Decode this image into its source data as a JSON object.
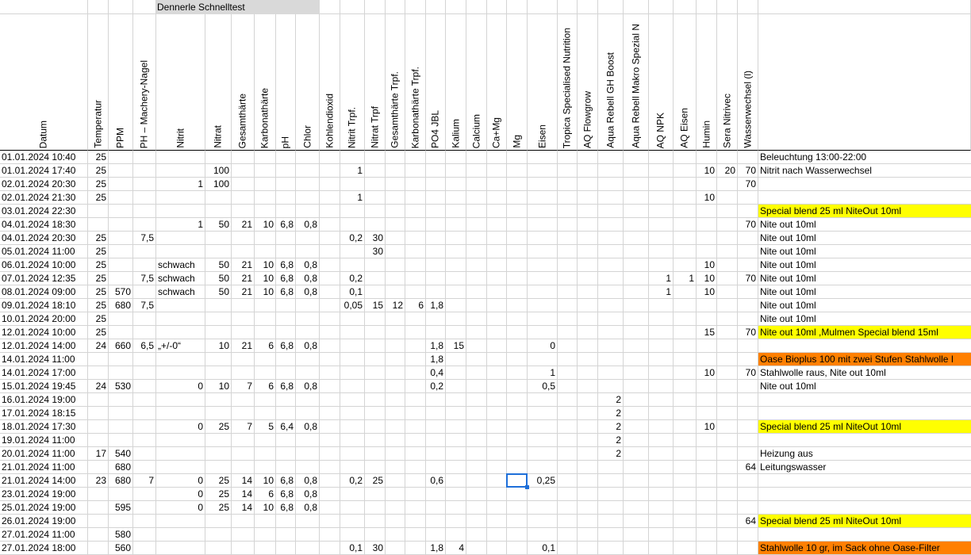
{
  "sheet": {
    "group_title": "Dennerle Schnelltest",
    "columns": [
      "Datum",
      "Temperatur",
      "PPM",
      "PH – Machery-Nagel",
      "Nitrit",
      "Nitrat",
      "Gesamthärte",
      "Karbonathärte",
      "pH",
      "Chlor",
      "Kohlendioxid",
      "Nitrit Trpf.",
      "Nitrat Trpf",
      "Gesamthärte Trpf.",
      "Karbonathärte Trpf.",
      "PO4 JBL",
      "Kalium",
      "Calcium",
      "Ca+Mg",
      "Mg",
      "Eisen",
      "Tropica Specialised Nutrition",
      "AQ Flowgrow",
      "Aqua Rebell GH Boost",
      "Aqua Rebell Makro Spezial N",
      "AQ NPK",
      "AQ Eisen",
      "Humin",
      "Sera Nitrivec",
      "Wasserwechsel (l)",
      null
    ],
    "rows": [
      {
        "cells": {
          "0": "01.01.2024 10:40",
          "1": "25",
          "30": "Beleuchtung 13:00-22:00"
        }
      },
      {
        "cells": {
          "0": "01.01.2024 17:40",
          "1": "25",
          "5": "100",
          "11": "1",
          "27": "10",
          "28": "20",
          "29": "70",
          "30": "Nitrit nach Wasserwechsel"
        }
      },
      {
        "cells": {
          "0": "02.01.2024 20:30",
          "1": "25",
          "4": "1",
          "5": "100",
          "29": "70"
        }
      },
      {
        "cells": {
          "0": "02.01.2024 21:30",
          "1": "25",
          "11": "1",
          "27": "10"
        }
      },
      {
        "cells": {
          "0": "03.01.2024 22:30",
          "30": "Special blend 25 ml NiteOut 10ml"
        },
        "fill": "#ffff00"
      },
      {
        "cells": {
          "0": "04.01.2024 18:30",
          "4": "1",
          "5": "50",
          "6": "21",
          "7": "10",
          "8": "6,8",
          "9": "0,8",
          "29": "70",
          "30": "Nite out 10ml"
        }
      },
      {
        "cells": {
          "0": "04.01.2024 20:30",
          "1": "25",
          "3": "7,5",
          "11": "0,2",
          "12": "30",
          "30": "Nite out 10ml"
        }
      },
      {
        "cells": {
          "0": "05.01.2024 11:00",
          "1": "25",
          "12": "30",
          "30": "Nite out 10ml"
        }
      },
      {
        "cells": {
          "0": "06.01.2024 10:00",
          "1": "25",
          "4": "schwach",
          "5": "50",
          "6": "21",
          "7": "10",
          "8": "6,8",
          "9": "0,8",
          "27": "10",
          "30": "Nite out 10ml"
        }
      },
      {
        "cells": {
          "0": "07.01.2024 12:35",
          "1": "25",
          "3": "7,5",
          "4": "schwach",
          "5": "50",
          "6": "21",
          "7": "10",
          "8": "6,8",
          "9": "0,8",
          "11": "0,2",
          "25": "1",
          "26": "1",
          "27": "10",
          "29": "70",
          "30": "Nite out 10ml"
        }
      },
      {
        "cells": {
          "0": "08.01.2024 09:00",
          "1": "25",
          "2": "570",
          "4": "schwach",
          "5": "50",
          "6": "21",
          "7": "10",
          "8": "6,8",
          "9": "0,8",
          "11": "0,1",
          "25": "1",
          "27": "10",
          "30": "Nite out 10ml"
        }
      },
      {
        "cells": {
          "0": "09.01.2024 18:10",
          "1": "25",
          "2": "680",
          "3": "7,5",
          "11": "0,05",
          "12": "15",
          "13": "12",
          "14": "6",
          "15": "1,8",
          "30": "Nite out 10ml"
        }
      },
      {
        "cells": {
          "0": "10.01.2024 20:00",
          "1": "25",
          "30": "Nite out 10ml"
        }
      },
      {
        "cells": {
          "0": "12.01.2024 10:00",
          "1": "25",
          "27": "15",
          "29": "70",
          "30": "Nite out 10ml ,Mulmen Special blend 15ml"
        },
        "fill": "#ffff00"
      },
      {
        "cells": {
          "0": "12.01.2024 14:00",
          "1": "24",
          "2": "660",
          "3": "6,5",
          "4": "„+/-0“",
          "5": "10",
          "6": "21",
          "7": "6",
          "8": "6,8",
          "9": "0,8",
          "15": "1,8",
          "16": "15",
          "20": "0"
        }
      },
      {
        "cells": {
          "0": "14.01.2024 11:00",
          "15": "1,8",
          "30": "Oase Bioplus 100 mit zwei Stufen Stahlwolle I"
        },
        "fill": "#ff8000"
      },
      {
        "cells": {
          "0": "14.01.2024 17:00",
          "15": "0,4",
          "20": "1",
          "27": "10",
          "29": "70",
          "30": "Stahlwolle raus, Nite out 10ml"
        }
      },
      {
        "cells": {
          "0": "15.01.2024 19:45",
          "1": "24",
          "2": "530",
          "4": "0",
          "5": "10",
          "6": "7",
          "7": "6",
          "8": "6,8",
          "9": "0,8",
          "15": "0,2",
          "20": "0,5",
          "30": "Nite out 10ml"
        }
      },
      {
        "cells": {
          "0": "16.01.2024 19:00",
          "23": "2"
        }
      },
      {
        "cells": {
          "0": "17.01.2024 18:15",
          "23": "2"
        }
      },
      {
        "cells": {
          "0": "18.01.2024 17:30",
          "4": "0",
          "5": "25",
          "6": "7",
          "7": "5",
          "8": "6,4",
          "9": "0,8",
          "23": "2",
          "27": "10",
          "30": "Special blend 25 ml NiteOut 10ml"
        },
        "fill": "#ffff00"
      },
      {
        "cells": {
          "0": "19.01.2024 11:00",
          "23": "2"
        }
      },
      {
        "cells": {
          "0": "20.01.2024 11:00",
          "1": "17",
          "2": "540",
          "23": "2",
          "30": "Heizung aus"
        }
      },
      {
        "cells": {
          "0": "21.01.2024 11:00",
          "2": "680",
          "29": "64",
          "30": "Leitungswasser"
        }
      },
      {
        "cells": {
          "0": "21.01.2024 14:00",
          "1": "23",
          "2": "680",
          "3": "7",
          "4": "0",
          "5": "25",
          "6": "14",
          "7": "10",
          "8": "6,8",
          "9": "0,8",
          "11": "0,2",
          "12": "25",
          "15": "0,6",
          "20": "0,25"
        }
      },
      {
        "cells": {
          "0": "23.01.2024 19:00",
          "4": "0",
          "5": "25",
          "6": "14",
          "7": "6",
          "8": "6,8",
          "9": "0,8"
        }
      },
      {
        "cells": {
          "0": "25.01.2024 19:00",
          "2": "595",
          "4": "0",
          "5": "25",
          "6": "14",
          "7": "10",
          "8": "6,8",
          "9": "0,8"
        }
      },
      {
        "cells": {
          "0": "26.01.2024 19:00",
          "29": "64",
          "30": "Special blend 25 ml NiteOut 10ml"
        },
        "fill": "#ffff00"
      },
      {
        "cells": {
          "0": "27.01.2024 11:00",
          "2": "580"
        }
      },
      {
        "cells": {
          "0": "27.01.2024 18:00",
          "2": "560",
          "11": "0,1",
          "12": "30",
          "15": "1,8",
          "16": "4",
          "20": "0,1",
          "30": "Stahlwolle 10 gr, im Sack ohne Oase-Filter"
        },
        "fill": "#ff8000"
      }
    ]
  }
}
